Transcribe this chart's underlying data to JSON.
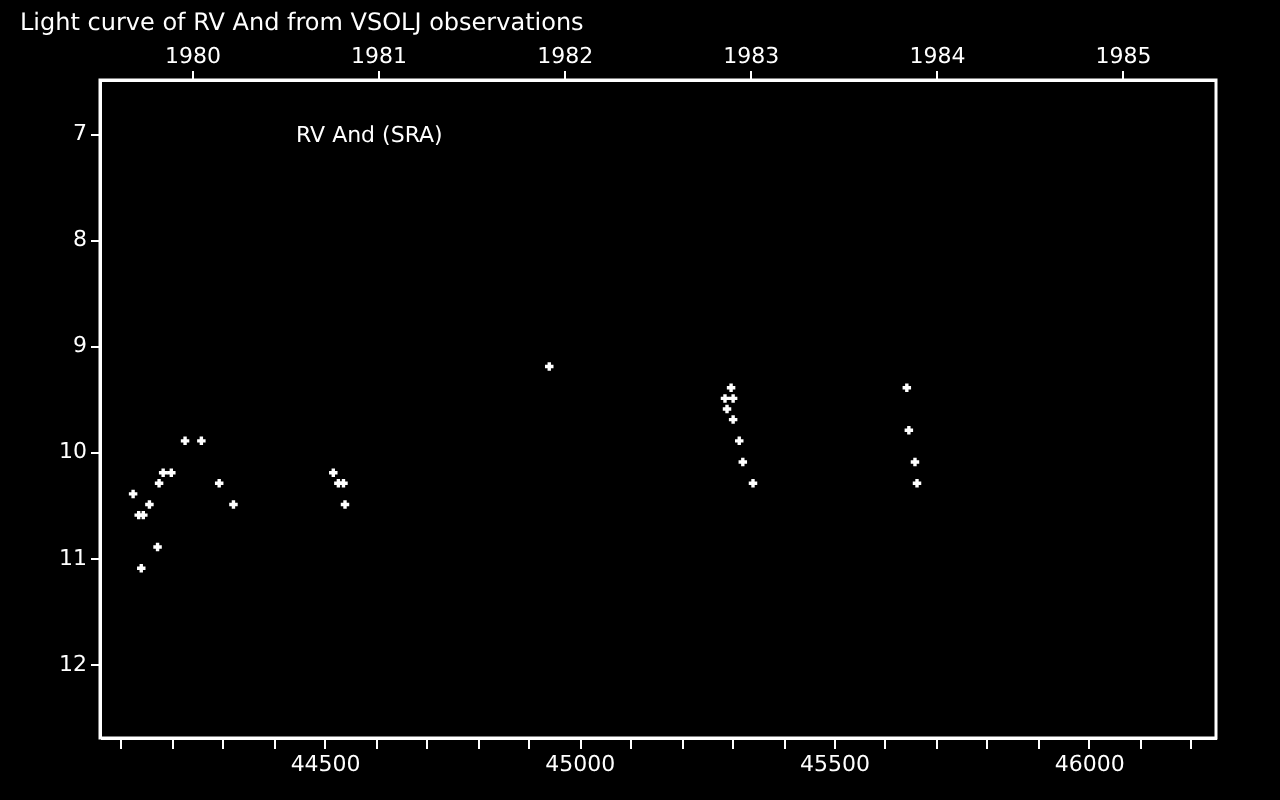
{
  "chart_data": {
    "type": "scatter",
    "title": "Light curve of RV And from VSOLJ observations",
    "annotations": [
      "RV And (SRA)"
    ],
    "x": [
      44124,
      44135,
      44144,
      44140,
      44156,
      44172,
      44175,
      44183,
      44199,
      44226,
      44258,
      44293,
      44321,
      44517,
      44527,
      44537,
      44540,
      44941,
      45298,
      45286,
      45302,
      45290,
      45302,
      45314,
      45321,
      45341,
      45643,
      45647,
      45659,
      45663
    ],
    "series": [
      {
        "color": "#ffffff",
        "values": [
          10.4,
          10.6,
          10.6,
          11.1,
          10.5,
          10.9,
          10.3,
          10.2,
          10.2,
          9.9,
          9.9,
          10.3,
          10.5,
          10.2,
          10.3,
          10.3,
          10.5,
          9.2,
          9.4,
          9.5,
          9.5,
          9.6,
          9.7,
          9.9,
          10.1,
          10.3,
          9.4,
          9.8,
          10.1,
          10.3
        ]
      }
    ],
    "marker": "cross",
    "grid": false,
    "xlim": [
      44059,
      46250
    ],
    "ylim": [
      12.7,
      6.5
    ],
    "yticks": [
      7,
      8,
      9,
      10,
      11,
      12
    ],
    "xticks": [
      {
        "value": 44100,
        "label": null
      },
      {
        "value": 44200,
        "label": null
      },
      {
        "value": 44300,
        "label": null
      },
      {
        "value": 44400,
        "label": null
      },
      44500,
      {
        "value": 44600,
        "label": null
      },
      {
        "value": 44700,
        "label": null
      },
      {
        "value": 44800,
        "label": null
      },
      {
        "value": 44900,
        "label": null
      },
      45000,
      {
        "value": 45100,
        "label": null
      },
      {
        "value": 45200,
        "label": null
      },
      {
        "value": 45300,
        "label": null
      },
      {
        "value": 45400,
        "label": null
      },
      45500,
      {
        "value": 45600,
        "label": null
      },
      {
        "value": 45700,
        "label": null
      },
      {
        "value": 45800,
        "label": null
      },
      {
        "value": 45900,
        "label": null
      },
      46000,
      {
        "value": 46100,
        "label": null
      },
      {
        "value": 46200,
        "label": null
      }
    ],
    "x2lim": [
      1979.506,
      1985.502
    ],
    "x2ticks": [
      1980,
      1981,
      1982,
      1983,
      1984,
      1985
    ]
  }
}
